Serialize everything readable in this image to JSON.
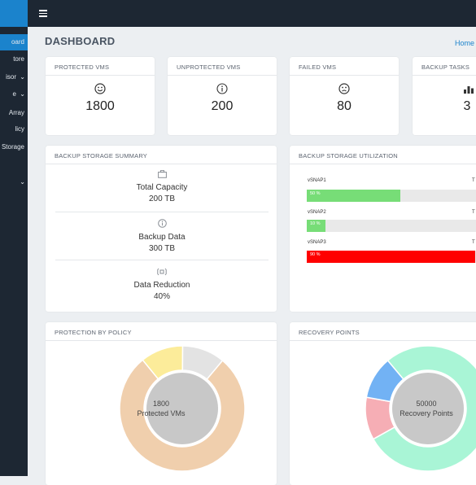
{
  "sidebar": {
    "items": [
      {
        "label": "oard",
        "active": true,
        "chevron": false
      },
      {
        "label": "tore",
        "active": false,
        "chevron": false
      },
      {
        "label": "isor",
        "active": false,
        "chevron": true
      },
      {
        "label": "e",
        "active": false,
        "chevron": true
      },
      {
        "label": "Array",
        "active": false,
        "chevron": false
      },
      {
        "label": "licy",
        "active": false,
        "chevron": false
      },
      {
        "label": "Storage",
        "active": false,
        "chevron": false
      },
      {
        "label": "",
        "active": false,
        "chevron": true
      }
    ]
  },
  "header": {
    "title": "DASHBOARD",
    "breadcrumb": "Home"
  },
  "stats": [
    {
      "label": "PROTECTED VMS",
      "icon": "smile-icon",
      "value": "1800"
    },
    {
      "label": "UNPROTECTED VMS",
      "icon": "info-icon",
      "value": "200"
    },
    {
      "label": "FAILED VMS",
      "icon": "frown-icon",
      "value": "80"
    },
    {
      "label": "BACKUP TASKS",
      "icon": "bar-chart-icon",
      "value": "3"
    }
  ],
  "summary": {
    "title": "BACKUP STORAGE SUMMARY",
    "rows": [
      {
        "icon": "briefcase-icon",
        "label": "Total Capacity",
        "value": "200 TB"
      },
      {
        "icon": "info-icon",
        "label": "Backup Data",
        "value": "300 TB"
      },
      {
        "icon": "reduction-icon",
        "label": "Data Reduction",
        "value": "40%"
      }
    ]
  },
  "utilization": {
    "title": "BACKUP STORAGE UTILIZATION",
    "rows": [
      {
        "name": "vSNAP1",
        "t": "T",
        "percent_label": "50 %",
        "percent": 50,
        "color": "#77dd77"
      },
      {
        "name": "vSNAP2",
        "t": "T",
        "percent_label": "10 %",
        "percent": 10,
        "color": "#77dd77"
      },
      {
        "name": "vSNAP3",
        "t": "T",
        "percent_label": "90 %",
        "percent": 90,
        "color": "#ff0000"
      }
    ]
  },
  "policy": {
    "title": "PROTECTION BY POLICY",
    "center_value": "1800",
    "center_label": "Protected VMs",
    "segments": [
      {
        "value": 78,
        "color": "#f0cfad"
      },
      {
        "value": 11,
        "color": "#fcec9a"
      },
      {
        "value": 11,
        "color": "#e3e3e3"
      }
    ]
  },
  "recovery": {
    "title": "RECOVERY POINTS",
    "center_value": "50000",
    "center_label": "Recovery Points",
    "segments": [
      {
        "value": 78,
        "color": "#a9f5d6"
      },
      {
        "value": 11,
        "color": "#f6aeb5"
      },
      {
        "value": 11,
        "color": "#72b2f4"
      }
    ]
  },
  "colors": {
    "accent": "#1b83cc",
    "sidebar": "#1d2733",
    "background": "#eceff2"
  }
}
